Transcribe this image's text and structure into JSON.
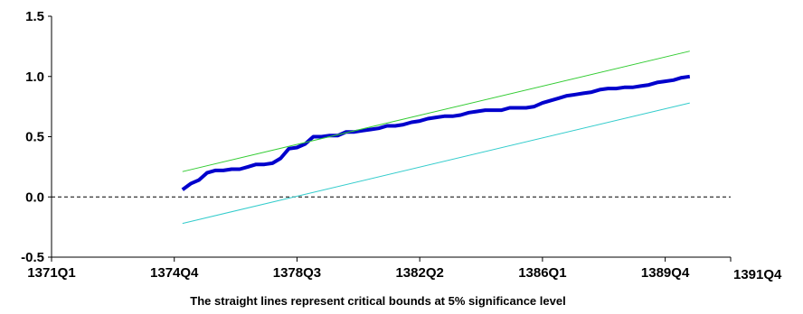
{
  "chart_data": {
    "type": "line",
    "title": "",
    "xlabel": "",
    "ylabel": "",
    "caption": "The straight lines represent critical bounds at 5% significance level",
    "x_ticks": [
      "1371Q1",
      "1374Q4",
      "1378Q3",
      "1382Q2",
      "1386Q1",
      "1389Q4",
      "1391Q4"
    ],
    "y_ticks": [
      "1.5",
      "1.0",
      "0.5",
      "0.0",
      "-0.5"
    ],
    "xlim": [
      0,
      83
    ],
    "ylim": [
      -0.5,
      1.5
    ],
    "grid": false,
    "reference_line": {
      "y": 0,
      "style": "dashed",
      "color": "#000000"
    },
    "series": [
      {
        "color": "#0000cc",
        "x": [
          16,
          17,
          18,
          19,
          20,
          21,
          22,
          23,
          24,
          25,
          26,
          27,
          28,
          29,
          30,
          31,
          32,
          33,
          34,
          35,
          36,
          37,
          38,
          39,
          40,
          41,
          42,
          43,
          44,
          45,
          46,
          47,
          48,
          49,
          50,
          51,
          52,
          53,
          54,
          55,
          56,
          57,
          58,
          59,
          60,
          61,
          62,
          63,
          64,
          65,
          66,
          67,
          68,
          69,
          70,
          71,
          72,
          73,
          74,
          75,
          76,
          77,
          78
        ],
        "values": [
          0.06,
          0.11,
          0.14,
          0.2,
          0.22,
          0.22,
          0.23,
          0.23,
          0.25,
          0.27,
          0.27,
          0.28,
          0.32,
          0.4,
          0.41,
          0.44,
          0.5,
          0.5,
          0.51,
          0.51,
          0.54,
          0.54,
          0.55,
          0.56,
          0.57,
          0.59,
          0.59,
          0.6,
          0.62,
          0.63,
          0.65,
          0.66,
          0.67,
          0.67,
          0.68,
          0.7,
          0.71,
          0.72,
          0.72,
          0.72,
          0.74,
          0.74,
          0.74,
          0.75,
          0.78,
          0.8,
          0.82,
          0.84,
          0.85,
          0.86,
          0.87,
          0.89,
          0.9,
          0.9,
          0.91,
          0.91,
          0.92,
          0.93,
          0.95,
          0.96,
          0.97,
          0.99,
          1.0
        ],
        "line_width": 4
      },
      {
        "color": "#33cc33",
        "x": [
          16,
          78
        ],
        "values": [
          0.21,
          1.21
        ],
        "line_width": 1
      },
      {
        "color": "#33cccc",
        "x": [
          16,
          78
        ],
        "values": [
          -0.22,
          0.78
        ],
        "line_width": 1
      }
    ]
  }
}
